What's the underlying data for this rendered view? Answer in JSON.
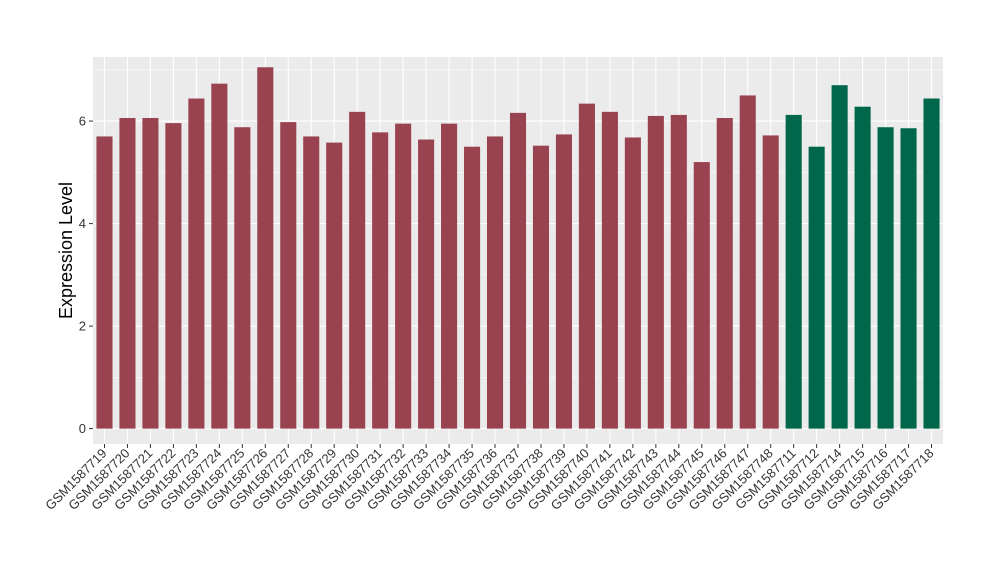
{
  "chart_data": {
    "type": "bar",
    "ylabel": "Expression Level",
    "xlabel": "",
    "ylim": [
      -0.3,
      7.25
    ],
    "yticks": [
      0,
      2,
      4,
      6
    ],
    "grid": true,
    "legend": "none",
    "colors": {
      "groupA": "#9a4350",
      "groupB": "#00674a",
      "panel": "#ebebeb",
      "gridline": "#ffffff"
    },
    "categories": [
      "GSM1587719",
      "GSM1587720",
      "GSM1587721",
      "GSM1587722",
      "GSM1587723",
      "GSM1587724",
      "GSM1587725",
      "GSM1587726",
      "GSM1587727",
      "GSM1587728",
      "GSM1587729",
      "GSM1587730",
      "GSM1587731",
      "GSM1587732",
      "GSM1587733",
      "GSM1587734",
      "GSM1587735",
      "GSM1587736",
      "GSM1587737",
      "GSM1587738",
      "GSM1587739",
      "GSM1587740",
      "GSM1587741",
      "GSM1587742",
      "GSM1587743",
      "GSM1587744",
      "GSM1587745",
      "GSM1587746",
      "GSM1587747",
      "GSM1587748",
      "GSM1587711",
      "GSM1587712",
      "GSM1587714",
      "GSM1587715",
      "GSM1587716",
      "GSM1587717",
      "GSM1587718"
    ],
    "values": [
      5.7,
      6.06,
      6.06,
      5.96,
      6.44,
      6.73,
      5.88,
      7.05,
      5.98,
      5.7,
      5.58,
      6.18,
      5.78,
      5.95,
      5.64,
      5.95,
      5.5,
      5.7,
      6.16,
      5.52,
      5.74,
      6.34,
      6.18,
      5.68,
      6.1,
      6.12,
      5.2,
      6.06,
      6.5,
      5.72,
      6.12,
      5.5,
      6.7,
      6.28,
      5.88,
      5.86,
      6.44
    ],
    "groups": [
      "A",
      "A",
      "A",
      "A",
      "A",
      "A",
      "A",
      "A",
      "A",
      "A",
      "A",
      "A",
      "A",
      "A",
      "A",
      "A",
      "A",
      "A",
      "A",
      "A",
      "A",
      "A",
      "A",
      "A",
      "A",
      "A",
      "A",
      "A",
      "A",
      "A",
      "B",
      "B",
      "B",
      "B",
      "B",
      "B",
      "B"
    ]
  }
}
